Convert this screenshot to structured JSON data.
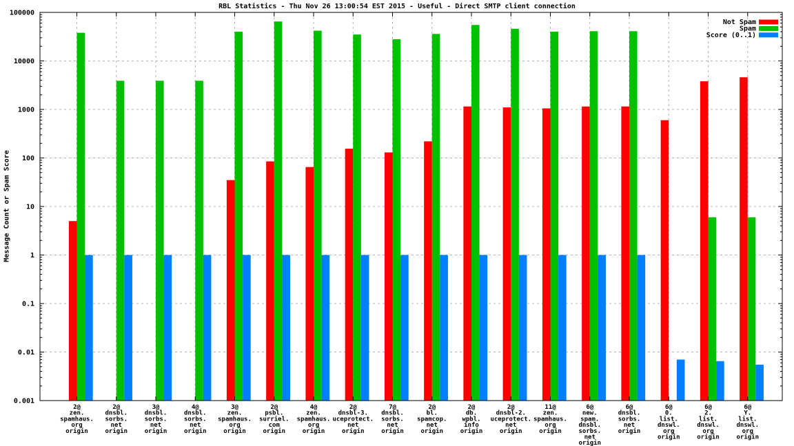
{
  "title": "RBL Statistics - Thu Nov 26 13:00:54 EST 2015 - Useful - Direct SMTP client connection",
  "chart_data": {
    "type": "bar",
    "title": "RBL Statistics - Thu Nov 26 13:00:54 EST 2015 - Useful - Direct SMTP client connection",
    "xlabel": "",
    "ylabel": "Message Count or Spam Score",
    "yscale": "log",
    "ylim": [
      0.001,
      100000
    ],
    "ytick_labels": [
      "100000",
      "10000",
      "1000",
      "100",
      "10",
      "1",
      "0.1",
      "0.01",
      "0.001"
    ],
    "grid": true,
    "legend_position": "top-right",
    "legend": [
      {
        "name": "Not Spam",
        "color": "#ff0000"
      },
      {
        "name": "Spam",
        "color": "#00c000"
      },
      {
        "name": "Score (0..1)",
        "color": "#0080ff"
      }
    ],
    "categories": [
      [
        "2@",
        "zen.",
        "spamhaus.",
        "org",
        "origin"
      ],
      [
        "2@",
        "dnsbl.",
        "sorbs.",
        "net",
        "origin"
      ],
      [
        "3@",
        "dnsbl.",
        "sorbs.",
        "net",
        "origin"
      ],
      [
        "4@",
        "dnsbl.",
        "sorbs.",
        "net",
        "origin"
      ],
      [
        "3@",
        "zen.",
        "spamhaus.",
        "org",
        "origin"
      ],
      [
        "2@",
        "psbl.",
        "surriel.",
        "com",
        "origin"
      ],
      [
        "4@",
        "zen.",
        "spamhaus.",
        "org",
        "origin"
      ],
      [
        "2@",
        "dnsbl-3.",
        "uceprotect.",
        "net",
        "origin"
      ],
      [
        "7@",
        "dnsbl.",
        "sorbs.",
        "net",
        "origin"
      ],
      [
        "2@",
        "bl.",
        "spamcop.",
        "net",
        "origin"
      ],
      [
        "2@",
        "db.",
        "wpbl.",
        "info",
        "origin"
      ],
      [
        "2@",
        "dnsbl-2.",
        "uceprotect.",
        "net",
        "origin"
      ],
      [
        "11@",
        "zen.",
        "spamhaus.",
        "org",
        "origin"
      ],
      [
        "6@",
        "new.",
        "spam.",
        "dnsbl.",
        "sorbs.",
        "net",
        "origin"
      ],
      [
        "6@",
        "dnsbl.",
        "sorbs.",
        "net",
        "origin"
      ],
      [
        "6@",
        "0.",
        "list.",
        "dnswl.",
        "org",
        "origin"
      ],
      [
        "6@",
        "2.",
        "list.",
        "dnswl.",
        "org",
        "origin"
      ],
      [
        "6@",
        "Y.",
        "list.",
        "dnswl.",
        "org",
        "origin"
      ]
    ],
    "series": [
      {
        "name": "Not Spam",
        "color": "#ff0000",
        "values": [
          5,
          0,
          0,
          0,
          35,
          85,
          65,
          155,
          130,
          220,
          1150,
          1100,
          1050,
          1150,
          1150,
          600,
          3800,
          4600
        ]
      },
      {
        "name": "Spam",
        "color": "#00c000",
        "values": [
          38000,
          3900,
          3900,
          3900,
          40000,
          65000,
          42000,
          35000,
          28000,
          36000,
          55000,
          46000,
          40000,
          41000,
          41000,
          0,
          6,
          6
        ]
      },
      {
        "name": "Score (0..1)",
        "color": "#0080ff",
        "values": [
          1,
          1,
          1,
          1,
          1,
          1,
          1,
          1,
          1,
          1,
          1,
          1,
          1,
          1,
          1,
          0.007,
          0.0065,
          0.0055
        ]
      }
    ]
  }
}
